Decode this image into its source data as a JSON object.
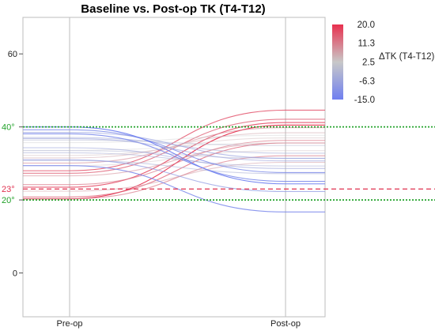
{
  "chart_data": {
    "type": "line",
    "title": "Baseline vs. Post-op TK (T4-T12)",
    "xlabel": "",
    "ylabel": "",
    "categories": [
      "Pre-op",
      "Post-op"
    ],
    "ylim": [
      -12,
      70
    ],
    "yticks": [
      {
        "value": 0,
        "label": "0"
      },
      {
        "value": 20,
        "label": "20"
      },
      {
        "value": 40,
        "label": "40"
      },
      {
        "value": 60,
        "label": "60"
      }
    ],
    "grid": false,
    "reference_lines": [
      {
        "value": 40,
        "label": "40°",
        "color": "#22a22a",
        "style": "dotted"
      },
      {
        "value": 23,
        "label": "23°",
        "color": "#e0314f",
        "style": "dashed"
      },
      {
        "value": 20,
        "label": "20°",
        "color": "#22a22a",
        "style": "dotted"
      }
    ],
    "colorbar": {
      "label": "ΔTK (T4-T12)",
      "ticks": [
        {
          "value": 20.0,
          "label": "20.0"
        },
        {
          "value": 11.3,
          "label": "11.3"
        },
        {
          "value": 2.5,
          "label": "2.5"
        },
        {
          "value": -6.3,
          "label": "-6.3"
        },
        {
          "value": -15.0,
          "label": "-15.0"
        }
      ],
      "range": [
        -15.0,
        20.0
      ],
      "colors": {
        "high": "#e8304f",
        "mid": "#c8c8c8",
        "low": "#6f7ff0"
      },
      "placement": "top-right"
    },
    "series": [
      {
        "pre": 20.3,
        "post": 40.5
      },
      {
        "pre": 20.8,
        "post": 35.6
      },
      {
        "pre": 23.5,
        "post": 41.2
      },
      {
        "pre": 24.2,
        "post": 36.3
      },
      {
        "pre": 20.3,
        "post": 32.1
      },
      {
        "pre": 22.4,
        "post": 30.3
      },
      {
        "pre": 27.3,
        "post": 42.1
      },
      {
        "pre": 28.0,
        "post": 44.6
      },
      {
        "pre": 30.1,
        "post": 39.8
      },
      {
        "pre": 31.5,
        "post": 38.4
      },
      {
        "pre": 32.2,
        "post": 37.0
      },
      {
        "pre": 33.6,
        "post": 35.6
      },
      {
        "pre": 29.4,
        "post": 33.5
      },
      {
        "pre": 33.5,
        "post": 31.4
      },
      {
        "pre": 32.9,
        "post": 29.3
      },
      {
        "pre": 35.7,
        "post": 37.7
      },
      {
        "pre": 36.4,
        "post": 34.9
      },
      {
        "pre": 37.1,
        "post": 32.8
      },
      {
        "pre": 34.3,
        "post": 28.6
      },
      {
        "pre": 30.8,
        "post": 27.2
      },
      {
        "pre": 38.5,
        "post": 31.4
      },
      {
        "pre": 39.2,
        "post": 27.5
      },
      {
        "pre": 38.1,
        "post": 25.1
      },
      {
        "pre": 40.0,
        "post": 24.4
      },
      {
        "pre": 31.0,
        "post": 22.3
      },
      {
        "pre": 29.4,
        "post": 16.7
      },
      {
        "pre": 36.8,
        "post": 30.7
      },
      {
        "pre": 26.6,
        "post": 35.6
      }
    ]
  }
}
